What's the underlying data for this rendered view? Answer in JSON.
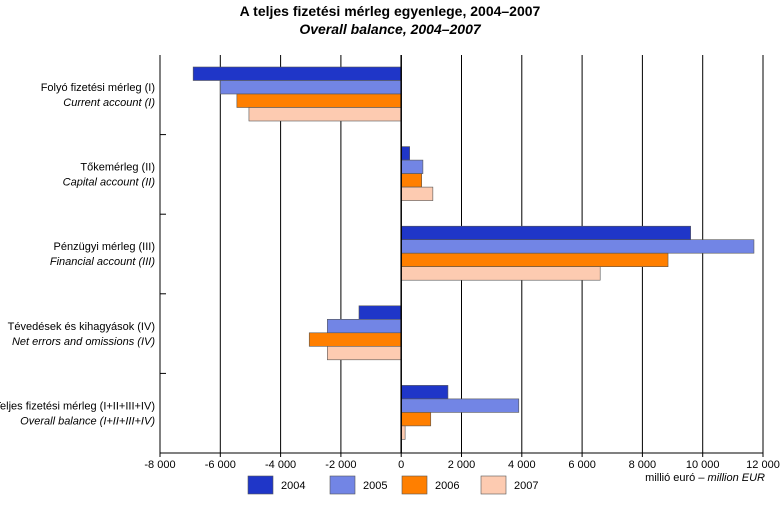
{
  "chart_data": {
    "type": "bar",
    "orientation": "horizontal",
    "title": "A teljes fizetési mérleg egyenlege, 2004–2007",
    "subtitle": "Overall balance, 2004–2007",
    "categories": [
      {
        "hu": "Folyó fizetési mérleg (I)",
        "en": "Current account (I)"
      },
      {
        "hu": "Tőkemérleg (II)",
        "en": "Capital account (II)"
      },
      {
        "hu": "Pénzügyi mérleg (III)",
        "en": "Financial account (III)"
      },
      {
        "hu": "Tévedések és kihagyások (IV)",
        "en": "Net errors and omissions (IV)"
      },
      {
        "hu": "Teljes fizetési mérleg (I+II+III+IV)",
        "en": "Overall balance (I+II+III+IV)"
      }
    ],
    "series": [
      {
        "name": "2004",
        "color": "#1f36c8",
        "values": [
          -6900,
          280,
          9600,
          -1400,
          1550
        ]
      },
      {
        "name": "2005",
        "color": "#7285e5",
        "values": [
          -6000,
          720,
          11700,
          -2450,
          3900
        ]
      },
      {
        "name": "2006",
        "color": "#ff7f00",
        "values": [
          -5450,
          680,
          8850,
          -3050,
          980
        ]
      },
      {
        "name": "2007",
        "color": "#fdcbb1",
        "values": [
          -5050,
          1050,
          6600,
          -2450,
          130
        ]
      }
    ],
    "xlim": [
      -8000,
      12000
    ],
    "xticks": [
      -8000,
      -6000,
      -4000,
      -2000,
      0,
      2000,
      4000,
      6000,
      8000,
      10000,
      12000
    ],
    "xtick_labels": [
      "-8 000",
      "-6 000",
      "-4 000",
      "-2 000",
      "0",
      "2 000",
      "4 000",
      "6 000",
      "8 000",
      "10 000",
      "12 000"
    ],
    "xlabel_hu": "millió euró –",
    "xlabel_en": "million EUR",
    "grid": "vertical",
    "legend_position": "bottom"
  }
}
